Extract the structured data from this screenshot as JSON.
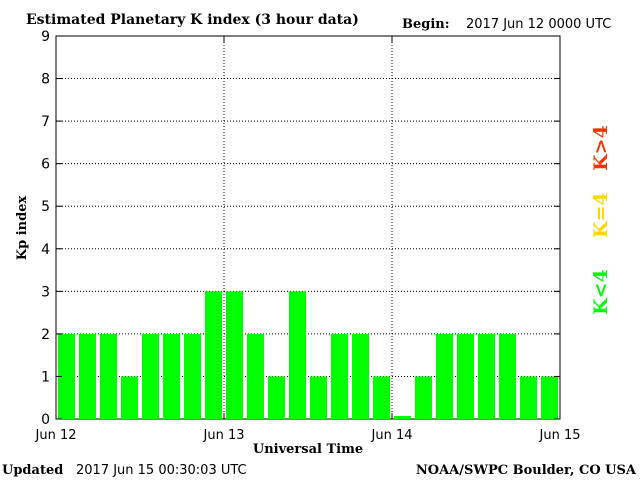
{
  "header": {
    "title": "Estimated Planetary K index (3 hour data)",
    "begin_label": "Begin:",
    "begin_value": "2017 Jun 12 0000 UTC"
  },
  "footer": {
    "updated_label": "Updated",
    "updated_value": "2017 Jun 15 00:30:03 UTC",
    "credit": "NOAA/SWPC Boulder, CO USA"
  },
  "legend": {
    "low": {
      "label": "K<4",
      "color": "#00ff00"
    },
    "mid": {
      "label": "K=4",
      "color": "#ffd700"
    },
    "high": {
      "label": "K>4",
      "color": "#ff3300"
    }
  },
  "chart_data": {
    "type": "bar",
    "xlabel": "Universal Time",
    "ylabel": "Kp index",
    "ylim": [
      0,
      9
    ],
    "yticks": [
      0,
      1,
      2,
      3,
      4,
      5,
      6,
      7,
      8,
      9
    ],
    "xticks": [
      "Jun 12",
      "Jun 13",
      "Jun 14",
      "Jun 15"
    ],
    "grid": true,
    "bar_color": "#00ff00",
    "values": [
      2,
      2,
      2,
      1,
      2,
      2,
      2,
      3,
      3,
      2,
      1,
      3,
      1,
      2,
      2,
      1,
      0.07,
      1,
      2,
      2,
      2,
      2,
      1,
      1
    ]
  }
}
